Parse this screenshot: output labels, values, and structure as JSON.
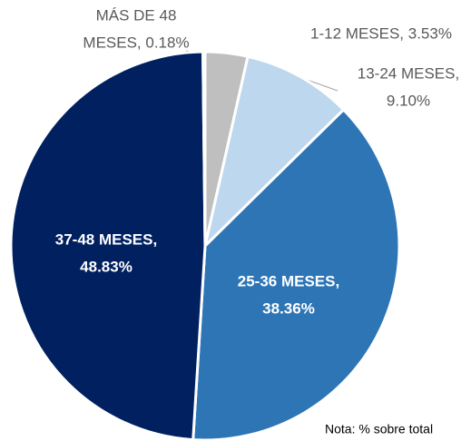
{
  "chart_data": {
    "type": "pie",
    "values": [
      3.53,
      9.1,
      38.36,
      48.83,
      0.18
    ],
    "value_labels": [
      [
        "1-12 MESES, 3.53%"
      ],
      [
        "13-24 MESES,",
        "9.10%"
      ],
      [
        "25-36 MESES,",
        "38.36%"
      ],
      [
        "37-48 MESES,",
        "48.83%"
      ],
      [
        "MÁS DE 48",
        "MESES, 0.18%"
      ]
    ],
    "colors": [
      "#bfbfbf",
      "#bdd7ee",
      "#2e75b6",
      "#002060",
      "#d9d9d9"
    ],
    "note": "Nota: % sobre total"
  }
}
